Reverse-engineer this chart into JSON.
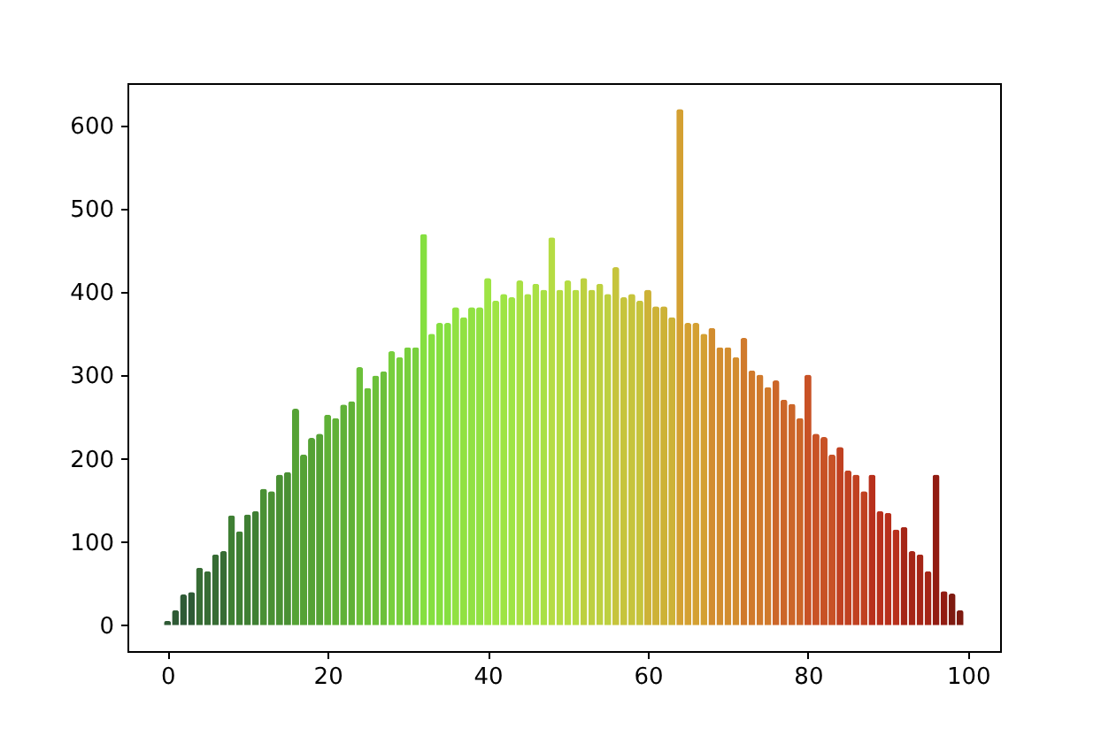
{
  "chart_data": {
    "type": "bar",
    "x": [
      0,
      1,
      2,
      3,
      4,
      5,
      6,
      7,
      8,
      9,
      10,
      11,
      12,
      13,
      14,
      15,
      16,
      17,
      18,
      19,
      20,
      21,
      22,
      23,
      24,
      25,
      26,
      27,
      28,
      29,
      30,
      31,
      32,
      33,
      34,
      35,
      36,
      37,
      38,
      39,
      40,
      41,
      42,
      43,
      44,
      45,
      46,
      47,
      48,
      49,
      50,
      51,
      52,
      53,
      54,
      55,
      56,
      57,
      58,
      59,
      60,
      61,
      62,
      63,
      64,
      65,
      66,
      67,
      68,
      69,
      70,
      71,
      72,
      73,
      74,
      75,
      76,
      77,
      78,
      79,
      80,
      81,
      82,
      83,
      84,
      85,
      86,
      87,
      88,
      89,
      90,
      91,
      92,
      93,
      94,
      95,
      96,
      97,
      98,
      99
    ],
    "values": [
      5,
      18,
      37,
      40,
      69,
      65,
      85,
      89,
      132,
      113,
      133,
      137,
      164,
      161,
      181,
      184,
      260,
      205,
      225,
      230,
      253,
      249,
      265,
      269,
      310,
      285,
      300,
      305,
      329,
      322,
      334,
      334,
      470,
      350,
      363,
      363,
      382,
      370,
      382,
      382,
      417,
      390,
      398,
      394,
      414,
      398,
      410,
      403,
      466,
      403,
      414,
      403,
      417,
      403,
      410,
      398,
      430,
      394,
      398,
      390,
      403,
      383,
      383,
      370,
      620,
      363,
      363,
      350,
      357,
      334,
      334,
      322,
      345,
      306,
      301,
      286,
      294,
      271,
      266,
      249,
      301,
      230,
      226,
      205,
      214,
      186,
      181,
      161,
      181,
      137,
      135,
      115,
      118,
      89,
      85,
      65,
      181,
      41,
      38,
      18
    ],
    "colors": [
      "#2e5a35",
      "#2e5a35",
      "#2e5a35",
      "#2e5a35",
      "#376c34",
      "#376c34",
      "#376c34",
      "#376c34",
      "#3f7f33",
      "#3f7f33",
      "#3f7f33",
      "#3f7f33",
      "#4a9034",
      "#4a9034",
      "#4a9034",
      "#4a9034",
      "#55a235",
      "#55a235",
      "#55a235",
      "#55a235",
      "#60b137",
      "#60b137",
      "#60b137",
      "#60b137",
      "#6cc03a",
      "#6cc03a",
      "#6cc03a",
      "#6cc03a",
      "#78cf3d",
      "#78cf3d",
      "#78cf3d",
      "#78cf3d",
      "#85df40",
      "#85df40",
      "#85df40",
      "#85df40",
      "#91e142",
      "#91e142",
      "#91e142",
      "#91e142",
      "#9ee444",
      "#9ee444",
      "#9ee444",
      "#9ee444",
      "#a9e044",
      "#a9e044",
      "#a9e044",
      "#a9e044",
      "#b5dc44",
      "#b5dc44",
      "#b5dc44",
      "#b5dc44",
      "#bdd040",
      "#bdd040",
      "#bdd040",
      "#bdd040",
      "#c6c43c",
      "#c6c43c",
      "#c6c43c",
      "#c6c43c",
      "#cdb237",
      "#cdb237",
      "#cdb237",
      "#cdb237",
      "#d4a032",
      "#d4a032",
      "#d4a032",
      "#d4a032",
      "#d28d2f",
      "#d28d2f",
      "#d28d2f",
      "#d28d2f",
      "#d07a2c",
      "#d07a2c",
      "#d07a2c",
      "#d07a2c",
      "#cc6629",
      "#cc6629",
      "#cc6629",
      "#cc6629",
      "#c85226",
      "#c85226",
      "#c85226",
      "#c85226",
      "#c04121",
      "#c04121",
      "#c04121",
      "#c04121",
      "#b8301c",
      "#b8301c",
      "#b8301c",
      "#b8301c",
      "#a52617",
      "#a52617",
      "#a52617",
      "#a52617",
      "#921c12",
      "#921c12",
      "#7e1a10",
      "#7e1a10"
    ],
    "xlim": [
      -5,
      104
    ],
    "ylim": [
      -31,
      651
    ],
    "xticks": [
      0,
      20,
      40,
      60,
      80,
      100
    ],
    "yticks": [
      0,
      100,
      200,
      300,
      400,
      500,
      600
    ],
    "grid": false
  }
}
